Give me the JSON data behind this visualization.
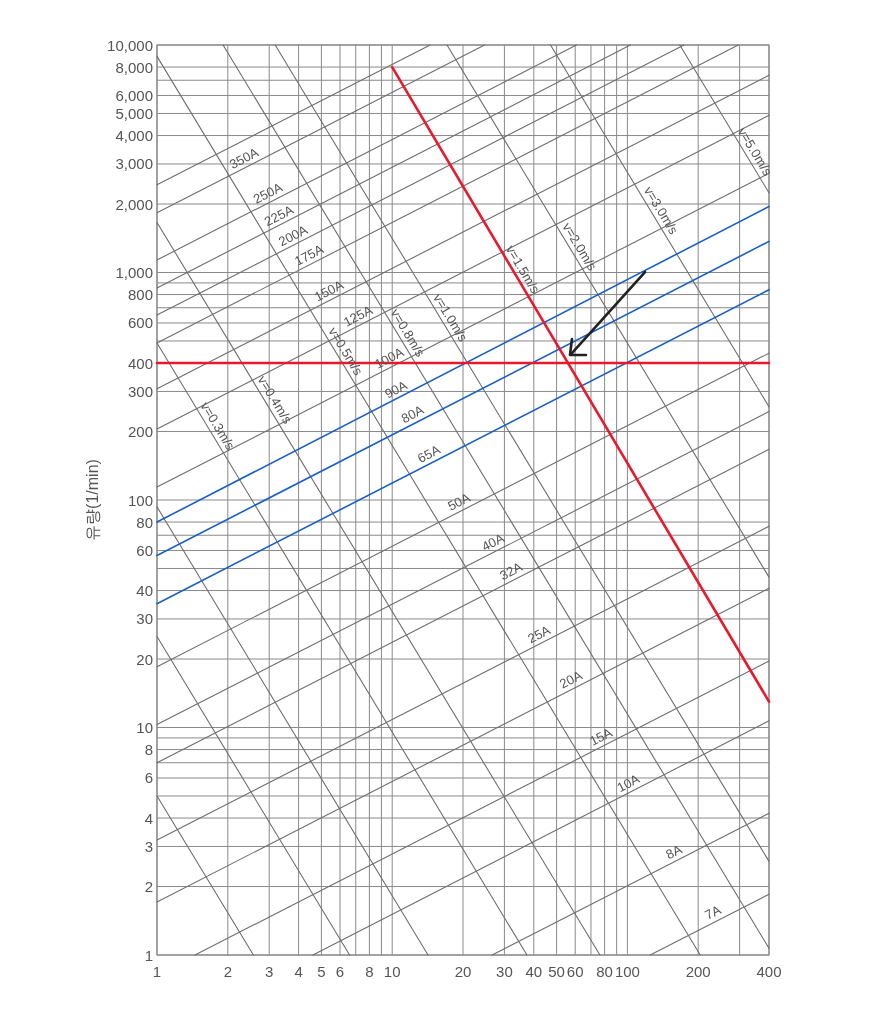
{
  "chart_data": {
    "type": "line",
    "log": "xy",
    "grid": true,
    "ylabel": "유량(1/min)",
    "xlim": [
      1,
      400
    ],
    "ylim": [
      1,
      10000
    ],
    "xticks": [
      1,
      2,
      3,
      4,
      5,
      6,
      {
        "value": 7,
        "label": null
      },
      8,
      {
        "value": 9,
        "label": null
      },
      10,
      20,
      30,
      40,
      50,
      60,
      {
        "value": 70,
        "label": null
      },
      80,
      {
        "value": 90,
        "label": null
      },
      100,
      200,
      {
        "value": 300,
        "label": null
      },
      400
    ],
    "yticks": [
      1,
      2,
      3,
      4,
      {
        "value": 5,
        "label": null
      },
      6,
      {
        "value": 7,
        "label": null
      },
      8,
      {
        "value": 9,
        "label": null
      },
      10,
      20,
      30,
      40,
      {
        "value": 50,
        "label": null
      },
      60,
      {
        "value": 70,
        "label": null
      },
      80,
      100,
      200,
      300,
      400,
      {
        "value": 500,
        "label": null
      },
      600,
      {
        "value": 700,
        "label": null
      },
      800,
      {
        "value": 900,
        "label": null
      },
      {
        "value": 1000,
        "label": "1,000"
      },
      {
        "value": 2000,
        "label": "2,000"
      },
      {
        "value": 3000,
        "label": "3,000"
      },
      {
        "value": 4000,
        "label": "4,000"
      },
      {
        "value": 5000,
        "label": "5,000"
      },
      {
        "value": 6000,
        "label": "6,000"
      },
      {
        "value": 7000,
        "label": null
      },
      {
        "value": 8000,
        "label": "8,000"
      },
      {
        "value": 10000,
        "label": "10,000"
      }
    ],
    "series": [
      {
        "color": "#6e6e6e",
        "x": [
          1,
          14.5
        ],
        "values": [
          2430,
          10000
        ]
      },
      {
        "color": "#6e6e6e",
        "x": [
          1,
          24.7
        ],
        "values": [
          1830,
          10000
        ]
      },
      {
        "color": "#6e6e6e",
        "x": [
          1,
          60.7
        ],
        "values": [
          1135,
          10000
        ]
      },
      {
        "color": "#6e6e6e",
        "x": [
          1,
          103
        ],
        "values": [
          855,
          10000
        ]
      },
      {
        "color": "#6e6e6e",
        "x": [
          1,
          174
        ],
        "values": [
          650,
          10000
        ]
      },
      {
        "color": "#6e6e6e",
        "x": [
          1,
          296
        ],
        "values": [
          490,
          10000
        ]
      },
      {
        "color": "#6e6e6e",
        "x": [
          1,
          400
        ],
        "values": [
          308,
          7360
        ]
      },
      {
        "color": "#6e6e6e",
        "x": [
          1,
          400
        ],
        "values": [
          205,
          4910
        ]
      },
      {
        "color": "#6e6e6e",
        "x": [
          1,
          400
        ],
        "values": [
          114,
          2730
        ]
      },
      {
        "color": "#6e6e6e",
        "x": [
          1,
          400
        ],
        "values": [
          18.5,
          442
        ]
      },
      {
        "color": "#6e6e6e",
        "x": [
          1,
          400
        ],
        "values": [
          10.3,
          245
        ]
      },
      {
        "color": "#6e6e6e",
        "x": [
          1,
          400
        ],
        "values": [
          7,
          167
        ]
      },
      {
        "color": "#6e6e6e",
        "x": [
          1,
          400
        ],
        "values": [
          3.2,
          76.6
        ]
      },
      {
        "color": "#6e6e6e",
        "x": [
          1,
          400
        ],
        "values": [
          1.71,
          40.9
        ]
      },
      {
        "color": "#6e6e6e",
        "x": [
          1.45,
          400
        ],
        "values": [
          1,
          19.6
        ]
      },
      {
        "color": "#6e6e6e",
        "x": [
          4.6,
          400
        ],
        "values": [
          1,
          10.7
        ]
      },
      {
        "color": "#6e6e6e",
        "x": [
          26.6,
          400
        ],
        "values": [
          1,
          4.2
        ]
      },
      {
        "color": "#6e6e6e",
        "x": [
          125,
          400
        ],
        "values": [
          1,
          1.85
        ]
      },
      {
        "color": "#6e6e6e",
        "x": [
          1,
          2.57
        ],
        "values": [
          5,
          1
        ]
      },
      {
        "color": "#6e6e6e",
        "x": [
          1,
          6.59
        ],
        "values": [
          25.1,
          1
        ]
      },
      {
        "color": "#6e6e6e",
        "x": [
          1,
          14.2
        ],
        "values": [
          93.3,
          1
        ]
      },
      {
        "color": "#6e6e6e",
        "x": [
          1,
          37.4
        ],
        "values": [
          490,
          1
        ]
      },
      {
        "color": "#6e6e6e",
        "x": [
          1,
          76.4
        ],
        "values": [
          1660,
          1
        ]
      },
      {
        "color": "#6e6e6e",
        "x": [
          1,
          204
        ],
        "values": [
          8910,
          1
        ]
      },
      {
        "color": "#6e6e6e",
        "x": [
          1.91,
          400
        ],
        "values": [
          10000,
          1.07
        ]
      },
      {
        "color": "#6e6e6e",
        "x": [
          3.18,
          400
        ],
        "values": [
          10000,
          2.58
        ]
      },
      {
        "color": "#6e6e6e",
        "x": [
          17.1,
          400
        ],
        "values": [
          10000,
          45.8
        ]
      },
      {
        "color": "#6e6e6e",
        "x": [
          47.1,
          400
        ],
        "values": [
          10000,
          257
        ]
      },
      {
        "color": "#6e6e6e",
        "x": [
          167,
          400
        ],
        "values": [
          10000,
          2240
        ]
      },
      {
        "color": "#1a5fc4",
        "x": [
          1,
          400
        ],
        "values": [
          80,
          1950
        ]
      },
      {
        "color": "#1a5fc4",
        "x": [
          1,
          400
        ],
        "values": [
          57,
          1370
        ]
      },
      {
        "color": "#1a5fc4",
        "x": [
          1,
          400
        ],
        "values": [
          35,
          840
        ]
      },
      {
        "color": "#e8192c",
        "x": [
          1,
          400
        ],
        "values": [
          400,
          400
        ]
      },
      {
        "color": "#e8192c",
        "x": [
          10,
          400
        ],
        "values": [
          8000,
          13
        ]
      }
    ],
    "annotations": [
      {
        "text": "350A",
        "x": 2.44,
        "y": 2930
      },
      {
        "text": "250A",
        "x": 3.08,
        "y": 2060
      },
      {
        "text": "225A",
        "x": 3.43,
        "y": 1640
      },
      {
        "text": "200A",
        "x": 3.94,
        "y": 1340
      },
      {
        "text": "175A",
        "x": 4.61,
        "y": 1100
      },
      {
        "text": "150A",
        "x": 5.6,
        "y": 767
      },
      {
        "text": "125A",
        "x": 7.44,
        "y": 594
      },
      {
        "text": "100A",
        "x": 10.1,
        "y": 388
      },
      {
        "text": "90A",
        "x": 10.8,
        "y": 282
      },
      {
        "text": "80A",
        "x": 12.7,
        "y": 220
      },
      {
        "text": "65A",
        "x": 14.9,
        "y": 147
      },
      {
        "text": "50A",
        "x": 20,
        "y": 90.6
      },
      {
        "text": "40A",
        "x": 27.9,
        "y": 60.1
      },
      {
        "text": "32A",
        "x": 33.3,
        "y": 44.9
      },
      {
        "text": "25A",
        "x": 43.8,
        "y": 23.7
      },
      {
        "text": "20A",
        "x": 59.8,
        "y": 15
      },
      {
        "text": "15A",
        "x": 80.3,
        "y": 8.4
      },
      {
        "text": "10A",
        "x": 105,
        "y": 5.25
      },
      {
        "text": "8A",
        "x": 164,
        "y": 2.62
      },
      {
        "text": "7A",
        "x": 240,
        "y": 1.42
      },
      {
        "text": "v=0.3m/s",
        "x": 1.68,
        "y": 202
      },
      {
        "text": "v=0.4m/s",
        "x": 2.94,
        "y": 263
      },
      {
        "text": "v=0.5m/s",
        "x": 5.88,
        "y": 430
      },
      {
        "text": "v=0.8m/s",
        "x": 10.8,
        "y": 518
      },
      {
        "text": "v=1.0m/s",
        "x": 16.4,
        "y": 605
      },
      {
        "text": "v=1.5m/s",
        "x": 33.3,
        "y": 986
      },
      {
        "text": "v=2.0m/s",
        "x": 58.1,
        "y": 1240
      },
      {
        "text": "v=3.0m/s",
        "x": 129,
        "y": 1790
      },
      {
        "text": "v=5.0m/s",
        "x": 323,
        "y": 3240
      }
    ]
  }
}
